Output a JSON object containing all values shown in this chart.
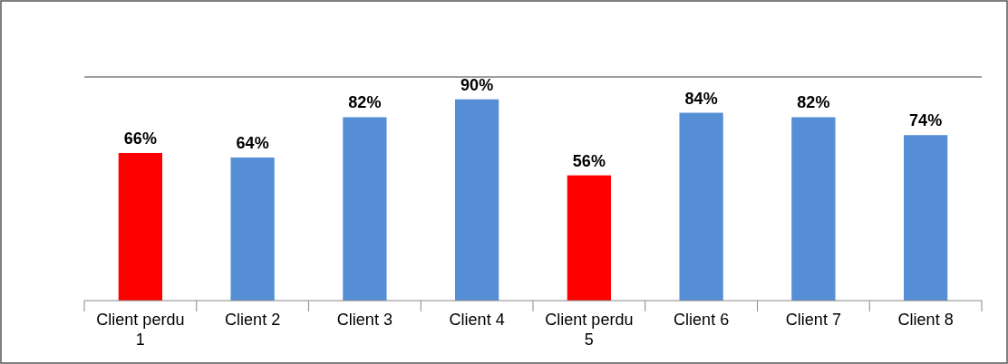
{
  "chart_data": {
    "type": "bar",
    "categories": [
      "Client perdu 1",
      "Client 2",
      "Client 3",
      "Client 4",
      "Client perdu 5",
      "Client 6",
      "Client 7",
      "Client 8"
    ],
    "values": [
      66,
      64,
      82,
      90,
      56,
      84,
      82,
      74
    ],
    "colors": [
      "#ff0000",
      "#558ed5",
      "#558ed5",
      "#558ed5",
      "#ff0000",
      "#558ed5",
      "#558ed5",
      "#558ed5"
    ],
    "value_labels": [
      "66%",
      "64%",
      "82%",
      "90%",
      "56%",
      "84%",
      "82%",
      "74%"
    ],
    "ylim": [
      0,
      100
    ],
    "ref_lines": [
      {
        "axis": "y",
        "value": 100,
        "color": "#404040"
      }
    ],
    "tick_labels": "x"
  }
}
